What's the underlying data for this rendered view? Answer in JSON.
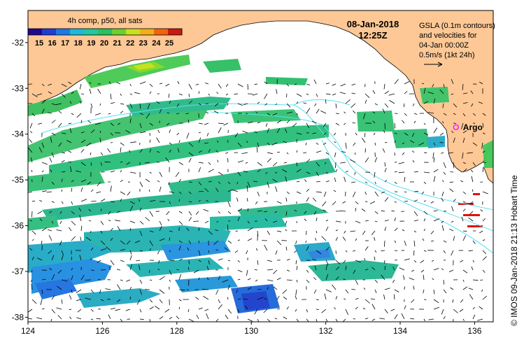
{
  "colorbar": {
    "title": "4h comp, p50, all sats",
    "labels": [
      "15",
      "16",
      "17",
      "18",
      "19",
      "20",
      "21",
      "22",
      "23",
      "24",
      "25"
    ],
    "colors": [
      "#1e0a8c",
      "#1f3cd6",
      "#1c78e8",
      "#1fb8d8",
      "#20c8a0",
      "#28c060",
      "#6ad030",
      "#c8e020",
      "#f0b01a",
      "#f06410",
      "#c81a10"
    ]
  },
  "header": {
    "date": "08-Jan-2018",
    "time": "12:25Z"
  },
  "legend": {
    "line1": "GSLA (0.1m contours)",
    "line2": "and velocities for",
    "line3": "04-Jan 00:00Z",
    "line4": "0.5m/s (1kt 24h)"
  },
  "marker": {
    "label": "Argo",
    "lon": 135.5,
    "lat": -33.85,
    "color": "#ff22ff"
  },
  "axes": {
    "x_ticks": [
      "124",
      "126",
      "128",
      "130",
      "132",
      "134",
      "136"
    ],
    "y_ticks": [
      "-32",
      "-33",
      "-34",
      "-35",
      "-36",
      "-37",
      "-38"
    ],
    "lon_range": [
      124,
      136.5
    ],
    "lat_range": [
      -38.1,
      -31.3
    ]
  },
  "credit": "© IMOS 09-Jan-2018 21:13 Hobart Time",
  "colors": {
    "land": "#fdc896",
    "contour": "#5ce0f0",
    "vector": "#000000",
    "warm": "#e01010"
  }
}
